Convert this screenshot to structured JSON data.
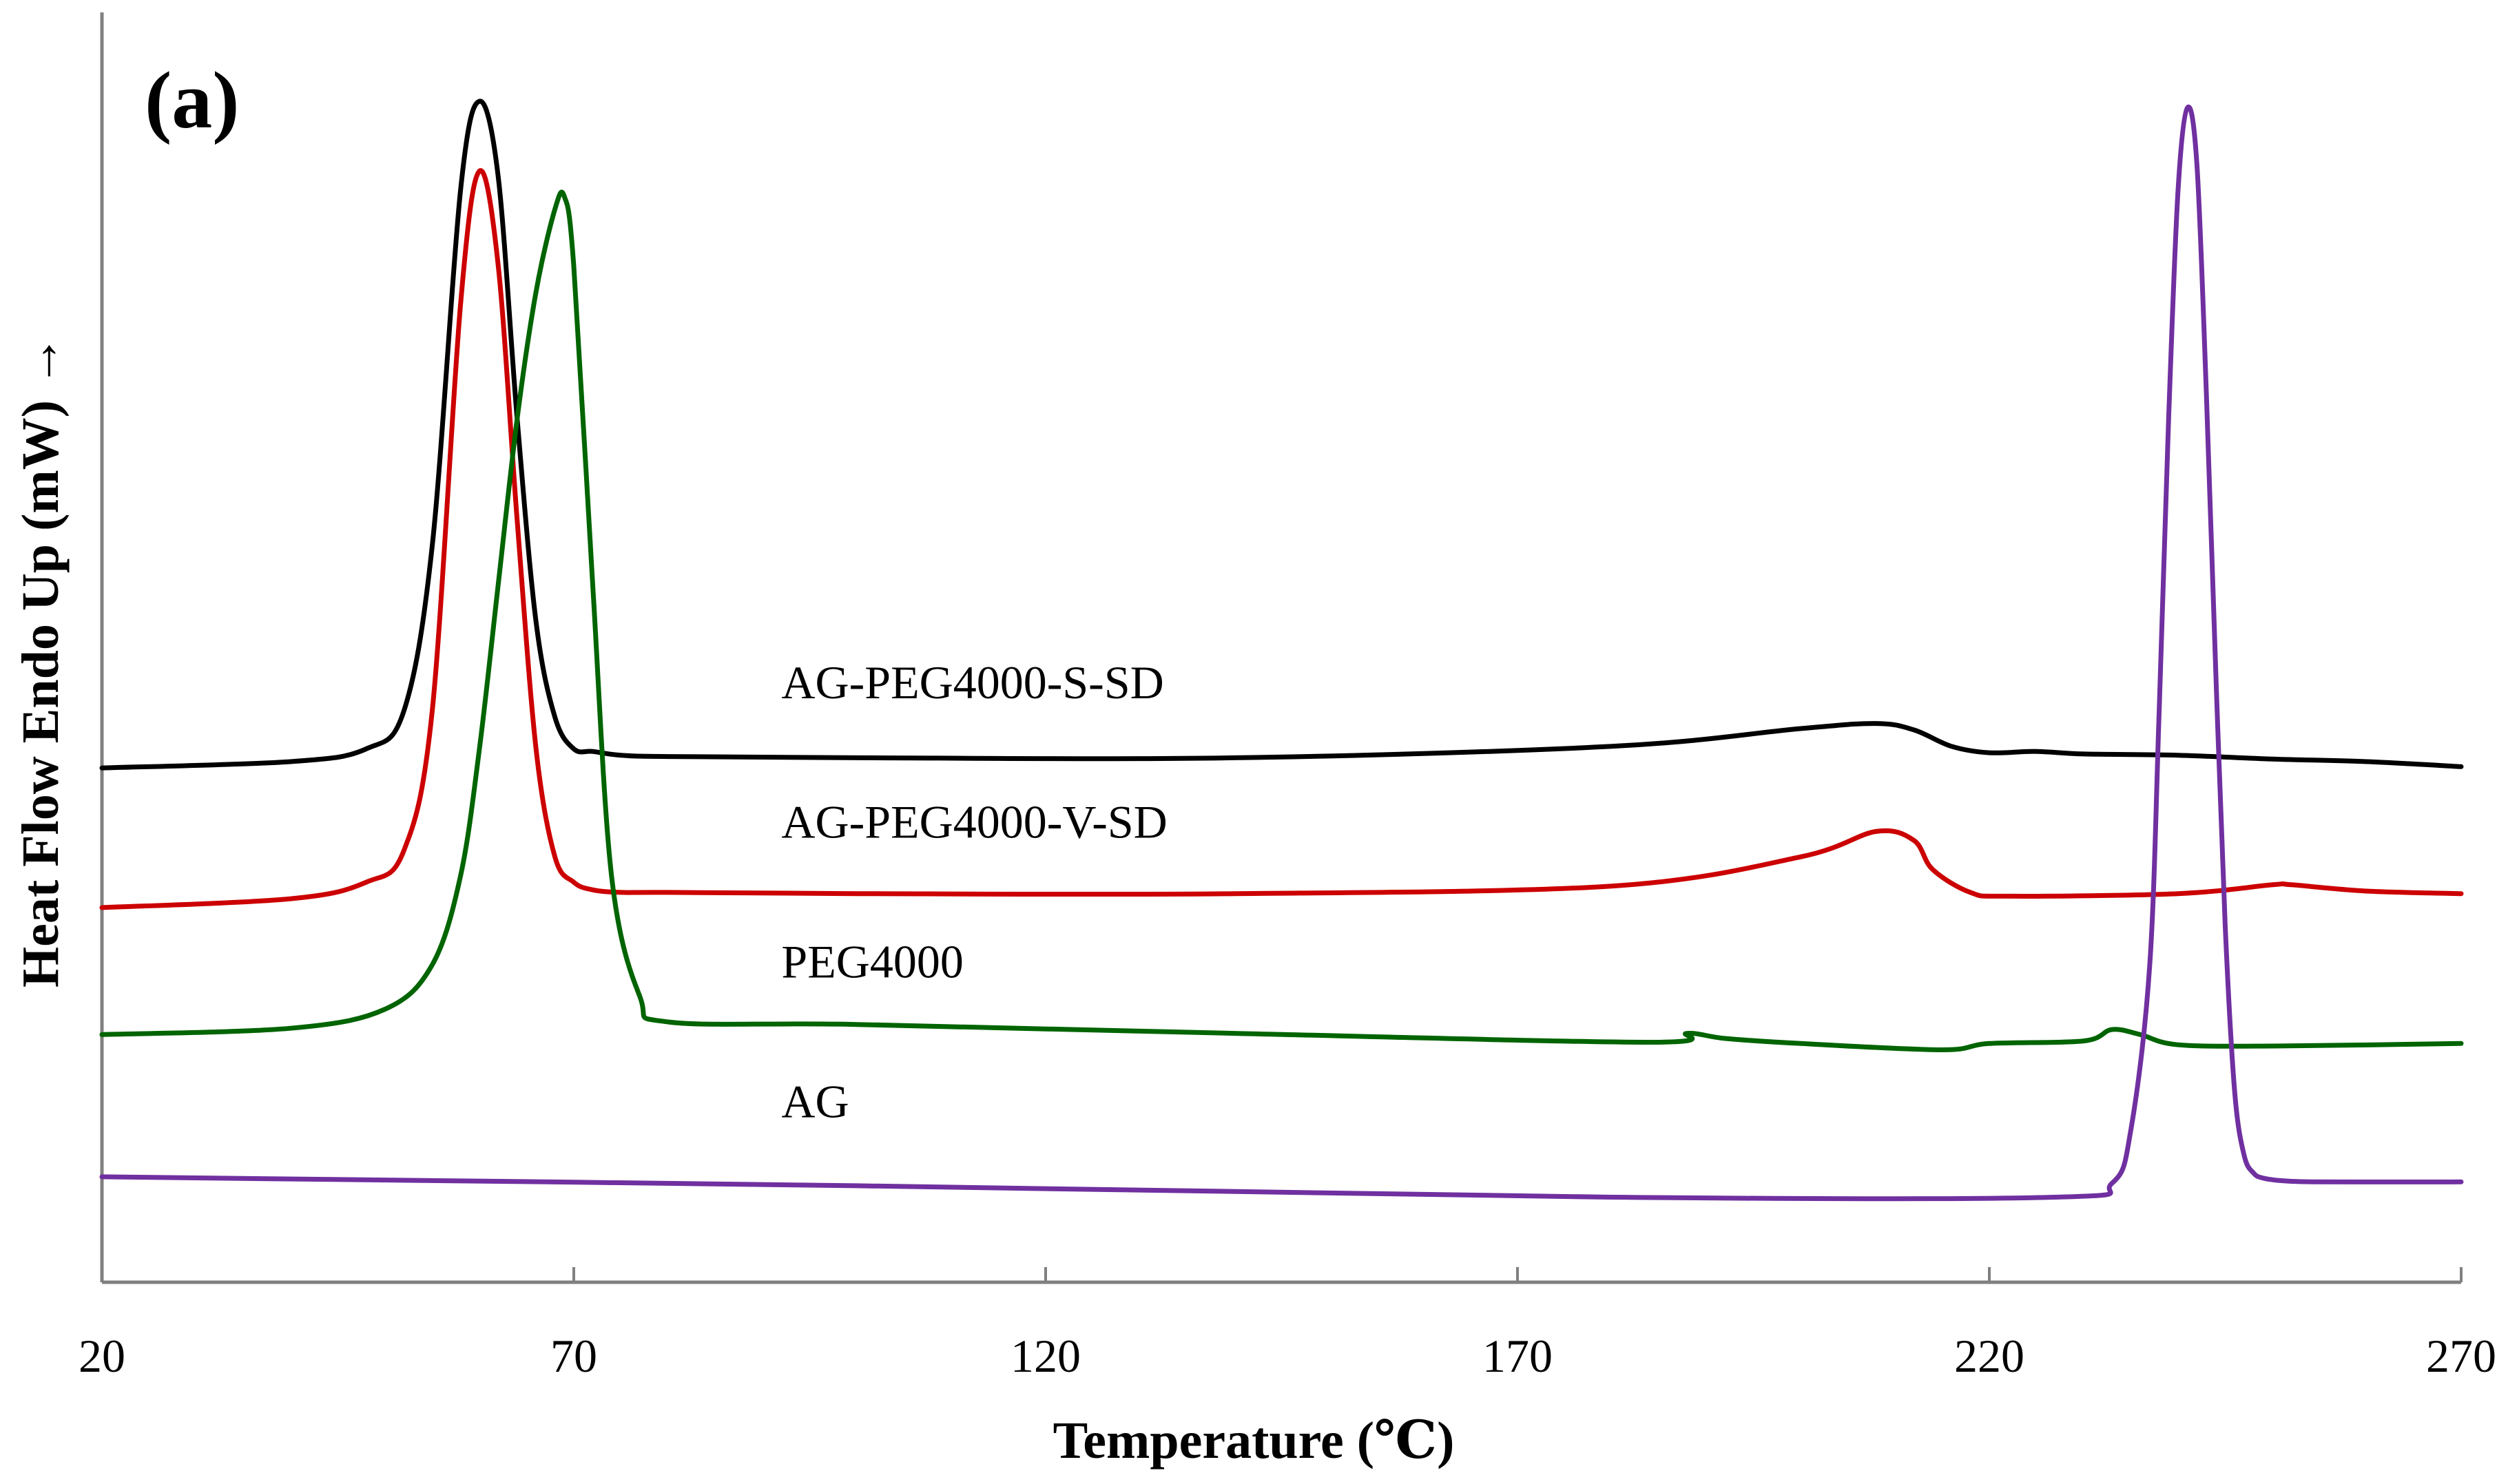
{
  "chart_data": {
    "type": "line",
    "panel_label": "(a)",
    "xlabel": "Temperature (℃)",
    "ylabel": "Heat Flow Endo Up (mW) →",
    "xlim": [
      20,
      270
    ],
    "ylim": [
      0,
      100
    ],
    "x_ticks": [
      20,
      70,
      120,
      170,
      220,
      270
    ],
    "x_tick_labels": [
      "20",
      "70",
      "120",
      "170",
      "220",
      "270"
    ],
    "y_ticks_shown": false,
    "series": [
      {
        "name": "AG-PEG4000-S-SD",
        "color": "#000000",
        "x": [
          20,
          40,
          48,
          52,
          55,
          58,
          60,
          62,
          64,
          66,
          68,
          70,
          72,
          75,
          80,
          100,
          140,
          180,
          200,
          208,
          212,
          216,
          220,
          225,
          230,
          240,
          250,
          260,
          270
        ],
        "y": [
          40.5,
          41.0,
          42.0,
          45.0,
          58.0,
          86.0,
          93.0,
          87.0,
          68.0,
          52.0,
          44.5,
          42.0,
          41.8,
          41.5,
          41.4,
          41.3,
          41.3,
          42.2,
          43.6,
          44.0,
          43.5,
          42.2,
          41.7,
          41.8,
          41.6,
          41.5,
          41.2,
          41.0,
          40.6
        ]
      },
      {
        "name": "AG-PEG4000-V-SD",
        "color": "#cc0000",
        "x": [
          20,
          40,
          48,
          52,
          55,
          58,
          60,
          62,
          64,
          66,
          68,
          70,
          72,
          75,
          80,
          100,
          140,
          180,
          200,
          208,
          212,
          214,
          218,
          222,
          240,
          250,
          252,
          260,
          270
        ],
        "y": [
          29.5,
          30.2,
          31.5,
          34.0,
          45.0,
          77.0,
          87.5,
          80.0,
          60.0,
          42.0,
          33.5,
          31.5,
          30.9,
          30.7,
          30.7,
          30.6,
          30.6,
          31.2,
          33.5,
          35.5,
          34.8,
          32.5,
          30.7,
          30.4,
          30.6,
          31.3,
          31.3,
          30.8,
          30.6
        ]
      },
      {
        "name": "PEG4000",
        "color": "#006400",
        "x": [
          20,
          40,
          50,
          55,
          58,
          60,
          62,
          64,
          66,
          68,
          69,
          70,
          72,
          74,
          77,
          80,
          100,
          140,
          184,
          188,
          192,
          200,
          215,
          220,
          230,
          233,
          236,
          240,
          250,
          270
        ],
        "y": [
          19.5,
          20.0,
          21.5,
          25.0,
          32.0,
          42.0,
          55.0,
          68.0,
          78.0,
          84.5,
          85.5,
          80.0,
          55.0,
          32.0,
          22.5,
          20.5,
          20.3,
          19.6,
          18.9,
          19.6,
          19.2,
          18.8,
          18.3,
          18.8,
          19.0,
          19.9,
          19.5,
          18.7,
          18.6,
          18.8
        ]
      },
      {
        "name": "AG",
        "color": "#7030a0",
        "x": [
          20,
          100,
          180,
          227,
          233,
          235,
          237,
          238,
          239,
          240,
          241,
          242,
          243,
          244,
          245,
          246,
          247,
          248,
          249,
          251,
          255,
          270
        ],
        "y": [
          8.3,
          7.6,
          6.7,
          6.7,
          7.8,
          12.0,
          25.0,
          45.0,
          68.0,
          86.0,
          92.5,
          88.0,
          70.0,
          48.0,
          28.0,
          15.0,
          10.0,
          8.6,
          8.2,
          8.0,
          7.9,
          7.9
        ]
      }
    ],
    "annotations": [
      {
        "text": "AG-PEG4000-S-SD",
        "x": 92,
        "y": 46
      },
      {
        "text": "AG-PEG4000-V-SD",
        "x": 92,
        "y": 35
      },
      {
        "text": "PEG4000",
        "x": 92,
        "y": 24
      },
      {
        "text": "AG",
        "x": 92,
        "y": 13
      }
    ]
  }
}
